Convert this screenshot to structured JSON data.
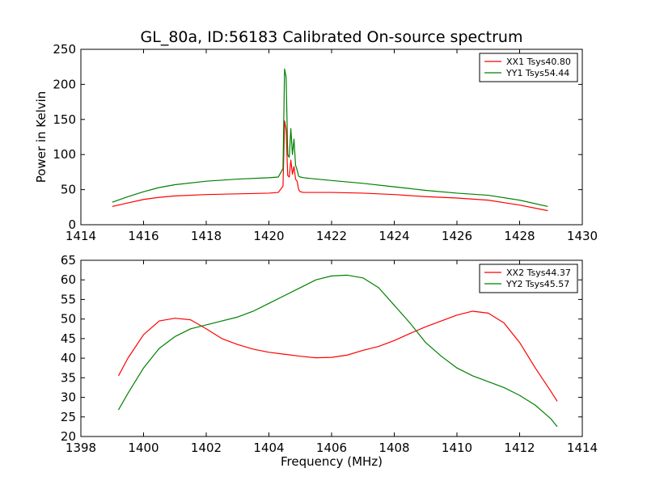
{
  "chart_data": [
    {
      "type": "line",
      "title": "GL_80a, ID:56183 Calibrated On-source spectrum",
      "xlabel": "",
      "ylabel": "Power in Kelvin",
      "xlim": [
        1414,
        1430
      ],
      "ylim": [
        0,
        250
      ],
      "xticks": [
        1414,
        1416,
        1418,
        1420,
        1422,
        1424,
        1426,
        1428,
        1430
      ],
      "yticks": [
        0,
        50,
        100,
        150,
        200,
        250
      ],
      "grid": false,
      "legend_position": "top-right",
      "series": [
        {
          "name": "XX1 Tsys40.80",
          "color": "#ff0000",
          "x": [
            1415.0,
            1415.5,
            1416.0,
            1416.5,
            1417.0,
            1418.0,
            1419.0,
            1420.0,
            1420.3,
            1420.45,
            1420.5,
            1420.55,
            1420.6,
            1420.65,
            1420.7,
            1420.75,
            1420.8,
            1420.85,
            1420.9,
            1420.95,
            1421.0,
            1421.1,
            1421.3,
            1422.0,
            1423.0,
            1424.0,
            1425.0,
            1426.0,
            1427.0,
            1428.0,
            1428.9
          ],
          "y": [
            26,
            31,
            36,
            39,
            41,
            43,
            44,
            45,
            46,
            55,
            148,
            135,
            70,
            68,
            92,
            72,
            83,
            65,
            62,
            50,
            47,
            46,
            46,
            46,
            45,
            43,
            40,
            38,
            35,
            28,
            20
          ]
        },
        {
          "name": "YY1 Tsys54.44",
          "color": "#008000",
          "x": [
            1415.0,
            1415.5,
            1416.0,
            1416.5,
            1417.0,
            1418.0,
            1419.0,
            1420.0,
            1420.3,
            1420.45,
            1420.5,
            1420.55,
            1420.6,
            1420.65,
            1420.7,
            1420.75,
            1420.8,
            1420.85,
            1420.9,
            1420.95,
            1421.0,
            1421.1,
            1421.3,
            1422.0,
            1423.0,
            1424.0,
            1425.0,
            1426.0,
            1427.0,
            1428.0,
            1428.9
          ],
          "y": [
            32,
            40,
            47,
            53,
            57,
            62,
            65,
            67,
            68,
            80,
            222,
            210,
            100,
            96,
            137,
            100,
            122,
            85,
            78,
            69,
            68,
            67,
            66,
            63,
            59,
            54,
            49,
            45,
            42,
            35,
            26
          ]
        }
      ]
    },
    {
      "type": "line",
      "title": "",
      "xlabel": "Frequency (MHz)",
      "ylabel": "",
      "xlim": [
        1398,
        1414
      ],
      "ylim": [
        20,
        65
      ],
      "xticks": [
        1398,
        1400,
        1402,
        1404,
        1406,
        1408,
        1410,
        1412,
        1414
      ],
      "yticks": [
        20,
        25,
        30,
        35,
        40,
        45,
        50,
        55,
        60,
        65
      ],
      "grid": false,
      "legend_position": "top-right",
      "series": [
        {
          "name": "XX2 Tsys44.37",
          "color": "#ff0000",
          "x": [
            1399.2,
            1399.5,
            1400.0,
            1400.5,
            1401.0,
            1401.5,
            1402.0,
            1402.5,
            1403.0,
            1403.5,
            1404.0,
            1404.5,
            1405.0,
            1405.5,
            1406.0,
            1406.5,
            1407.0,
            1407.5,
            1408.0,
            1408.5,
            1409.0,
            1409.5,
            1410.0,
            1410.5,
            1411.0,
            1411.5,
            1412.0,
            1412.5,
            1413.0,
            1413.2
          ],
          "y": [
            35.5,
            40,
            46,
            49.5,
            50.2,
            49.8,
            47.5,
            45,
            43.5,
            42.3,
            41.5,
            41,
            40.5,
            40.1,
            40.2,
            40.8,
            42,
            43,
            44.5,
            46.3,
            48,
            49.5,
            51,
            52,
            51.5,
            49,
            44,
            37.5,
            31.5,
            29
          ]
        },
        {
          "name": "YY2 Tsys45.57",
          "color": "#008000",
          "x": [
            1399.2,
            1399.5,
            1400.0,
            1400.5,
            1401.0,
            1401.5,
            1402.0,
            1402.5,
            1403.0,
            1403.5,
            1404.0,
            1404.5,
            1405.0,
            1405.5,
            1406.0,
            1406.5,
            1407.0,
            1407.5,
            1408.0,
            1408.5,
            1409.0,
            1409.5,
            1410.0,
            1410.5,
            1411.0,
            1411.5,
            1412.0,
            1412.5,
            1413.0,
            1413.2
          ],
          "y": [
            26.8,
            31,
            37.5,
            42.5,
            45.5,
            47.5,
            48.5,
            49.5,
            50.5,
            52,
            54,
            56,
            58,
            60,
            61,
            61.2,
            60.5,
            58,
            53.5,
            49,
            44,
            40.5,
            37.5,
            35.5,
            34,
            32.5,
            30.5,
            28,
            24.5,
            22.5
          ]
        }
      ]
    }
  ]
}
